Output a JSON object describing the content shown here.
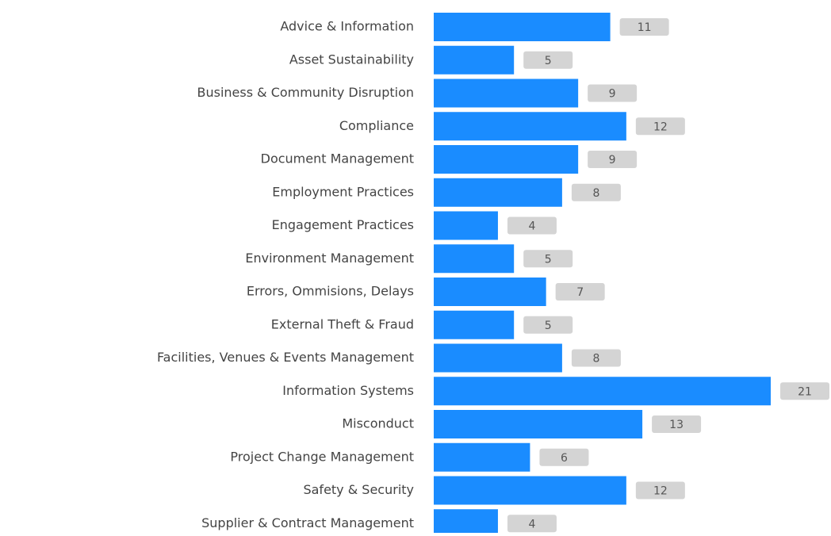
{
  "chart_data": {
    "type": "bar",
    "orientation": "horizontal",
    "categories": [
      "Advice & Information",
      "Asset Sustainability",
      "Business & Community Disruption",
      "Compliance",
      "Document Management",
      "Employment Practices",
      "Engagement Practices",
      "Environment Management",
      "Errors, Ommisions, Delays",
      "External Theft & Fraud",
      "Facilities, Venues & Events Management",
      "Information Systems",
      "Misconduct",
      "Project Change Management",
      "Safety & Security",
      "Supplier & Contract Management"
    ],
    "values": [
      11,
      5,
      9,
      12,
      9,
      8,
      4,
      5,
      7,
      5,
      8,
      21,
      13,
      6,
      12,
      4
    ],
    "color": "#1a8cff"
  }
}
